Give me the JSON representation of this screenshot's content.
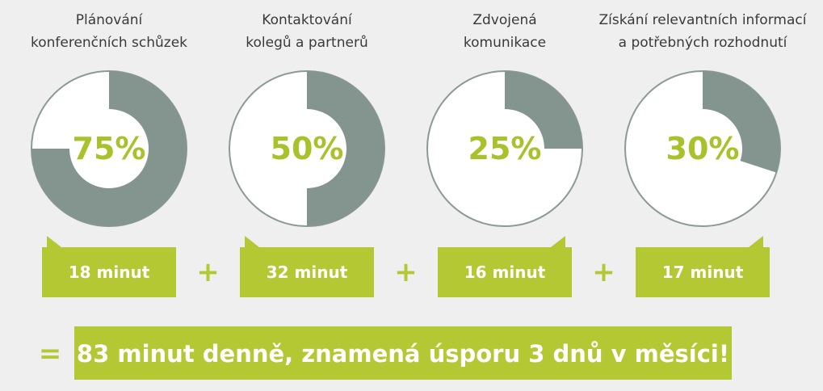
{
  "items": [
    {
      "title_lines": [
        "Plánování",
        "konferenčních schůzek"
      ],
      "value": 75,
      "value_label": "75%",
      "minutes": "18 minut"
    },
    {
      "title_lines": [
        "Kontaktování",
        "kolegů a partnerů"
      ],
      "value": 50,
      "value_label": "50%",
      "minutes": "32 minut"
    },
    {
      "title_lines": [
        "Zdvojená",
        "komunikace"
      ],
      "value": 25,
      "value_label": "25%",
      "minutes": "16 minut"
    },
    {
      "title_lines": [
        "Získání relevantních informací",
        "a potřebných rozhodnutí"
      ],
      "value": 30,
      "value_label": "30%",
      "minutes": "17 minut"
    }
  ],
  "plus": "+",
  "equals": "=",
  "total": "83 minut denně, znamená úsporu 3 dnů v měsíci!"
}
